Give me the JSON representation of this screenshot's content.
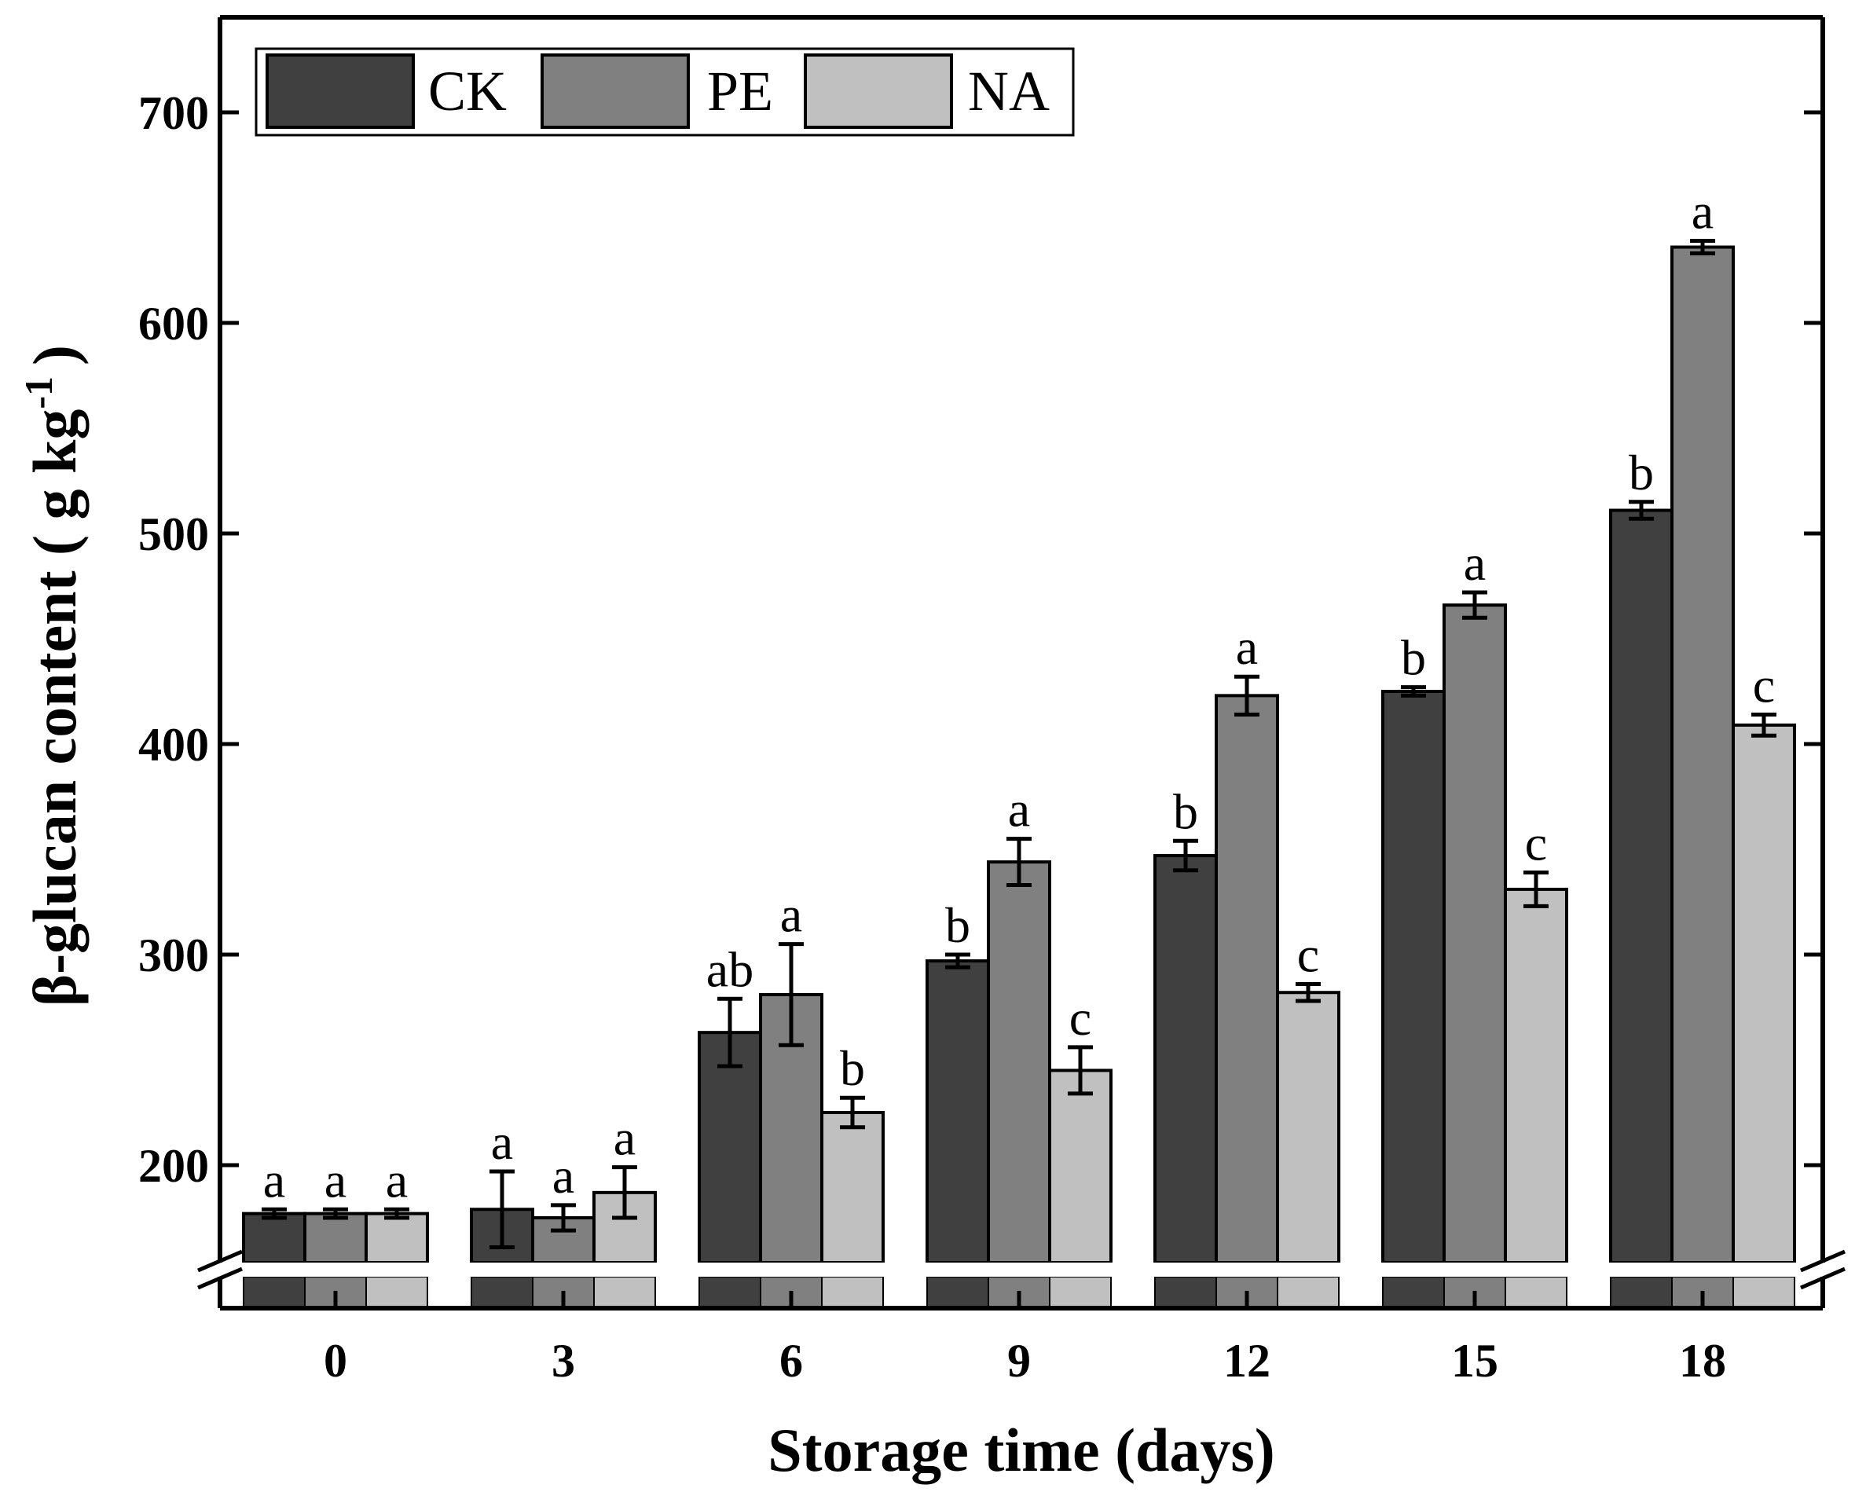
{
  "chart_data": {
    "type": "bar",
    "title": "",
    "xlabel": "Storage time (days)",
    "ylabel_main": "β-glucan content ( g kg",
    "ylabel_sup": "-1",
    "ylabel_close": ")",
    "categories": [
      "0",
      "3",
      "6",
      "9",
      "12",
      "15",
      "18"
    ],
    "y_ticks": [
      "200",
      "300",
      "400",
      "500",
      "600",
      "700"
    ],
    "ylim": [
      150,
      735
    ],
    "y_axis_break": true,
    "grid": false,
    "legend_position": "top-left",
    "series": [
      {
        "name": "CK",
        "color": "#404040",
        "values": [
          177,
          179,
          263,
          297,
          347,
          425,
          511
        ],
        "errors": [
          2,
          18,
          16,
          3,
          7,
          2,
          4
        ],
        "labels": [
          "a",
          "a",
          "ab",
          "b",
          "b",
          "b",
          "b"
        ]
      },
      {
        "name": "PE",
        "color": "#808080",
        "values": [
          177,
          175,
          281,
          344,
          423,
          466,
          636
        ],
        "errors": [
          2,
          6,
          24,
          11,
          9,
          6,
          3
        ],
        "labels": [
          "a",
          "a",
          "a",
          "a",
          "a",
          "a",
          "a"
        ]
      },
      {
        "name": "NA",
        "color": "#c0c0c0",
        "values": [
          177,
          187,
          225,
          245,
          282,
          331,
          409
        ],
        "errors": [
          2,
          12,
          7,
          11,
          4,
          8,
          5
        ],
        "labels": [
          "a",
          "a",
          "b",
          "c",
          "c",
          "c",
          "c"
        ]
      }
    ]
  }
}
